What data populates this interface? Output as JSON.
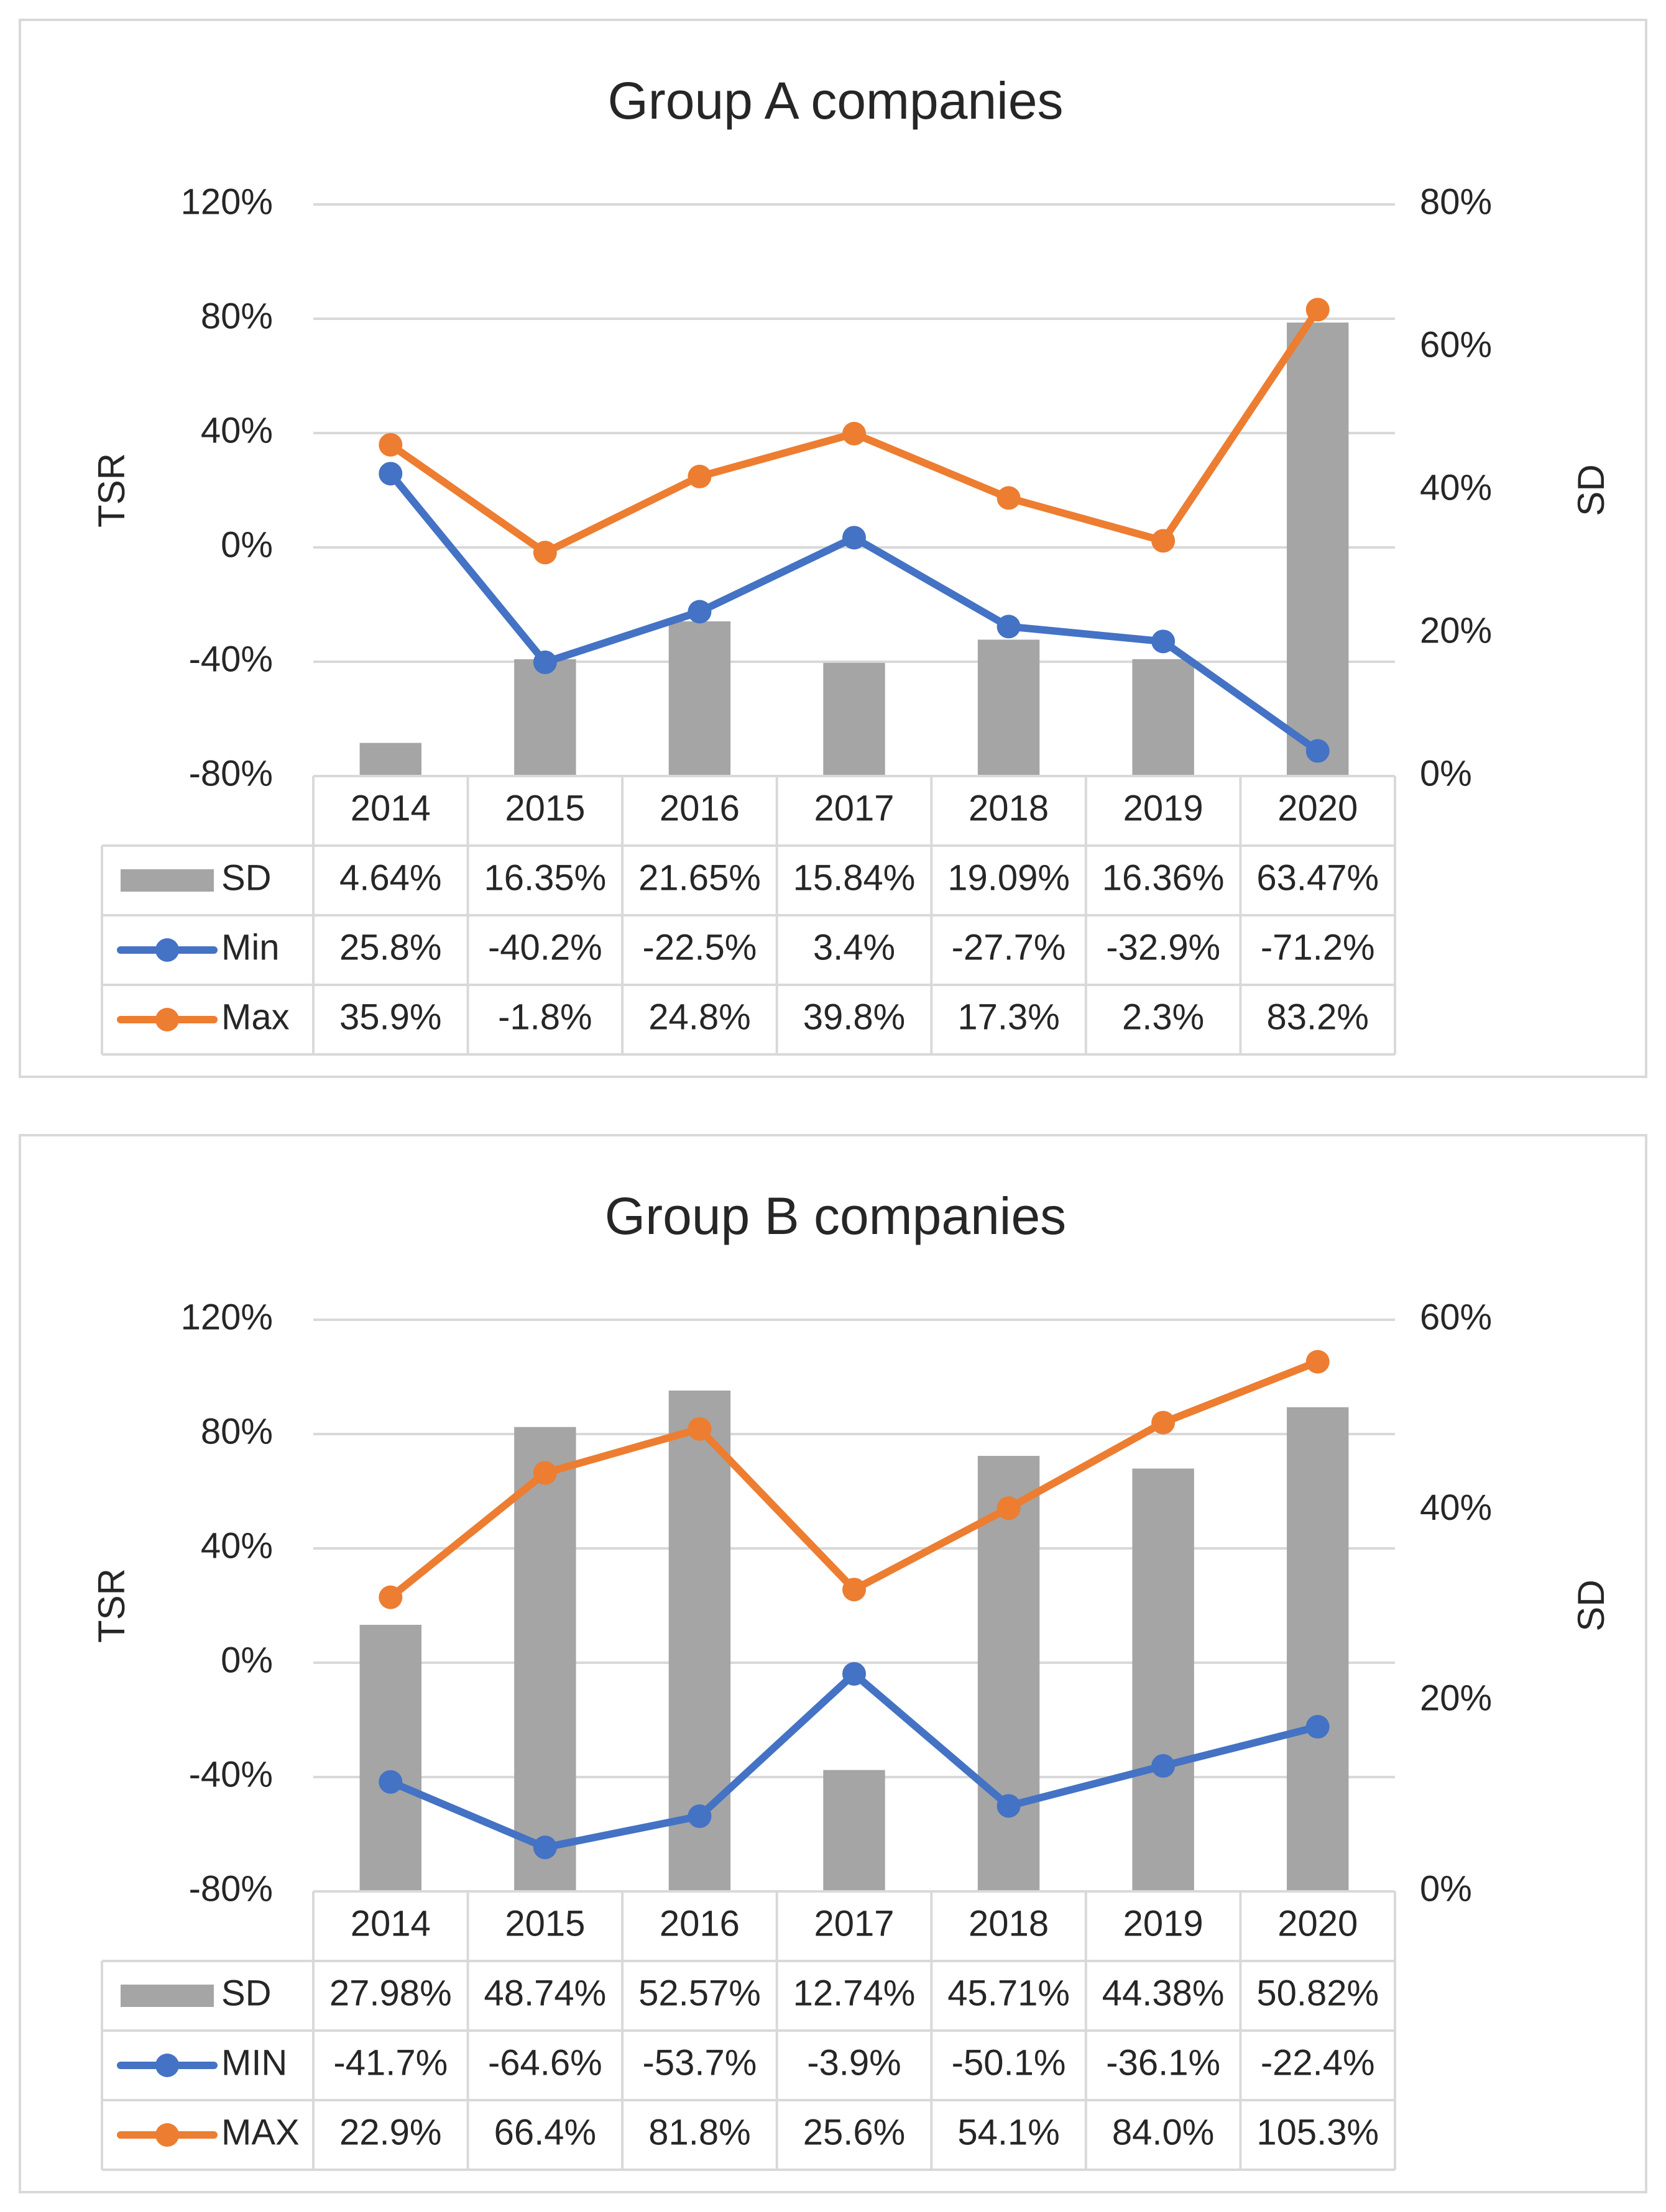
{
  "colors": {
    "sd": "#a5a5a5",
    "min": "#4472c4",
    "max": "#ed7d31",
    "grid": "#d9d9d9",
    "text": "#262626"
  },
  "chart_data": [
    {
      "type": "bar-line-combo",
      "title": "Group A companies",
      "ylabel": "TSR",
      "y2label": "SD",
      "ylim": [
        -0.8,
        1.2
      ],
      "y2lim": [
        0,
        0.8
      ],
      "yticks": [
        "120%",
        "80%",
        "40%",
        "0%",
        "-40%",
        "-80%"
      ],
      "y2ticks": [
        "80%",
        "60%",
        "40%",
        "20%",
        "0%"
      ],
      "categories": [
        "2014",
        "2015",
        "2016",
        "2017",
        "2018",
        "2019",
        "2020"
      ],
      "series": [
        {
          "name": "SD",
          "kind": "bar",
          "axis": "right",
          "values": [
            0.0464,
            0.1635,
            0.2165,
            0.1584,
            0.1909,
            0.1636,
            0.6347
          ],
          "labels": [
            "4.64%",
            "16.35%",
            "21.65%",
            "15.84%",
            "19.09%",
            "16.36%",
            "63.47%"
          ]
        },
        {
          "name": "Min",
          "kind": "line",
          "axis": "left",
          "values": [
            0.258,
            -0.402,
            -0.225,
            0.034,
            -0.277,
            -0.329,
            -0.712
          ],
          "labels": [
            "25.8%",
            "-40.2%",
            "-22.5%",
            "3.4%",
            "-27.7%",
            "-32.9%",
            "-71.2%"
          ]
        },
        {
          "name": "Max",
          "kind": "line",
          "axis": "left",
          "values": [
            0.359,
            -0.018,
            0.248,
            0.398,
            0.173,
            0.023,
            0.832
          ],
          "labels": [
            "35.9%",
            "-1.8%",
            "24.8%",
            "39.8%",
            "17.3%",
            "2.3%",
            "83.2%"
          ]
        }
      ]
    },
    {
      "type": "bar-line-combo",
      "title": "Group B companies",
      "ylabel": "TSR",
      "y2label": "SD",
      "ylim": [
        -0.8,
        1.2
      ],
      "y2lim": [
        0,
        0.6
      ],
      "yticks": [
        "120%",
        "80%",
        "40%",
        "0%",
        "-40%",
        "-80%"
      ],
      "y2ticks": [
        "60%",
        "40%",
        "20%",
        "0%"
      ],
      "categories": [
        "2014",
        "2015",
        "2016",
        "2017",
        "2018",
        "2019",
        "2020"
      ],
      "series": [
        {
          "name": "SD",
          "kind": "bar",
          "axis": "right",
          "values": [
            0.2798,
            0.4874,
            0.5257,
            0.1274,
            0.4571,
            0.4438,
            0.5082
          ],
          "labels": [
            "27.98%",
            "48.74%",
            "52.57%",
            "12.74%",
            "45.71%",
            "44.38%",
            "50.82%"
          ]
        },
        {
          "name": "MIN",
          "kind": "line",
          "axis": "left",
          "values": [
            -0.417,
            -0.646,
            -0.537,
            -0.039,
            -0.501,
            -0.361,
            -0.224
          ],
          "labels": [
            "-41.7%",
            "-64.6%",
            "-53.7%",
            "-3.9%",
            "-50.1%",
            "-36.1%",
            "-22.4%"
          ]
        },
        {
          "name": "MAX",
          "kind": "line",
          "axis": "left",
          "values": [
            0.229,
            0.664,
            0.818,
            0.256,
            0.541,
            0.84,
            1.053
          ],
          "labels": [
            "22.9%",
            "66.4%",
            "81.8%",
            "25.6%",
            "54.1%",
            "84.0%",
            "105.3%"
          ]
        }
      ]
    }
  ]
}
